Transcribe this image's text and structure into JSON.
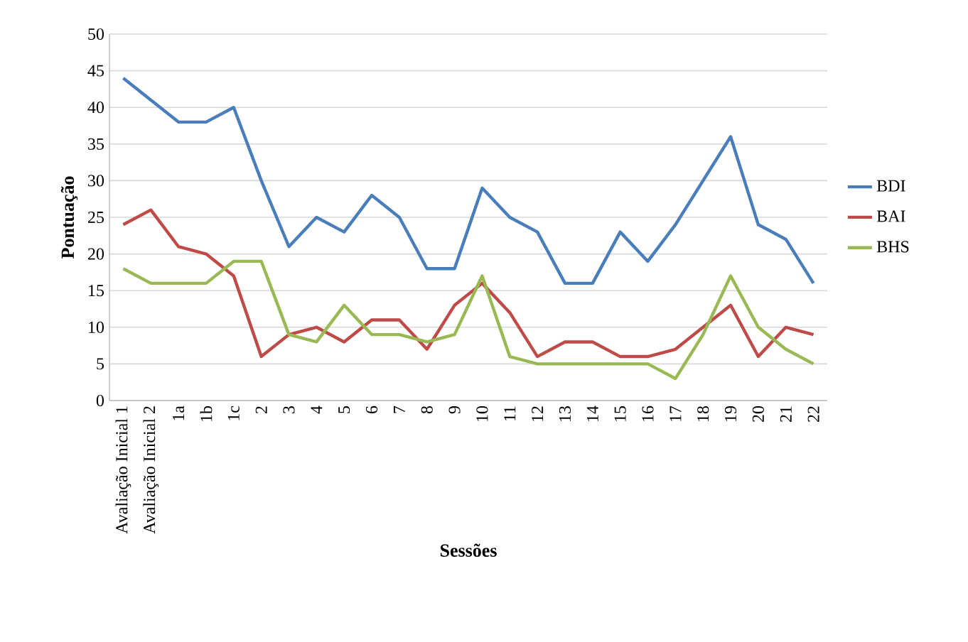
{
  "chart_data": {
    "type": "line",
    "xlabel": "Sessões",
    "ylabel": "Pontuação",
    "categories": [
      "Avaliação Inicial 1",
      "Avaliação Inicial 2",
      "1a",
      "1b",
      "1c",
      "2",
      "3",
      "4",
      "5",
      "6",
      "7",
      "8",
      "9",
      "10",
      "11",
      "12",
      "13",
      "14",
      "15",
      "16",
      "17",
      "18",
      "19",
      "20",
      "21",
      "22"
    ],
    "series": [
      {
        "name": "BDI",
        "color": "#4a7ebb",
        "values": [
          44,
          41,
          38,
          38,
          40,
          30,
          21,
          25,
          23,
          28,
          25,
          18,
          18,
          29,
          25,
          23,
          16,
          16,
          23,
          19,
          24,
          30,
          36,
          24,
          22,
          16
        ]
      },
      {
        "name": "BAI",
        "color": "#be4b48",
        "values": [
          24,
          26,
          21,
          20,
          17,
          6,
          9,
          10,
          8,
          11,
          11,
          7,
          13,
          16,
          12,
          6,
          8,
          8,
          6,
          6,
          7,
          10,
          13,
          6,
          10,
          9
        ]
      },
      {
        "name": "BHS",
        "color": "#98b954",
        "values": [
          18,
          16,
          16,
          16,
          19,
          19,
          9,
          8,
          13,
          9,
          9,
          8,
          9,
          17,
          6,
          5,
          5,
          5,
          5,
          5,
          3,
          9,
          17,
          10,
          7,
          5
        ]
      }
    ],
    "ylim": [
      0,
      50
    ],
    "yticks": [
      0,
      5,
      10,
      15,
      20,
      25,
      30,
      35,
      40,
      45,
      50
    ],
    "grid": "y",
    "legend": "right",
    "marker": "none",
    "line_style": "solid"
  }
}
